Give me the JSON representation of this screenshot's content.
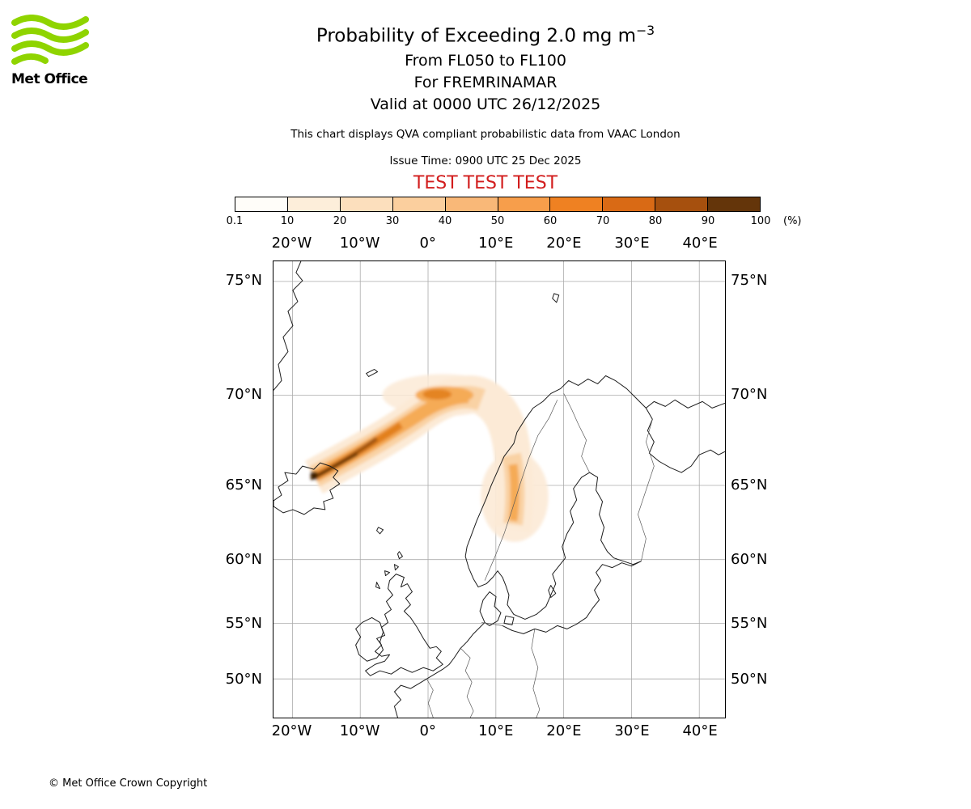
{
  "header": {
    "logo_text": "Met Office",
    "logo_green": "#8fd400",
    "title_main": "Probability of Exceeding 2.0 mg m",
    "title_sup": "−3",
    "line_fl": "From FL050 to FL100",
    "line_for": "For FREMRINAMAR",
    "line_valid": "Valid at 0000 UTC 26/12/2025",
    "qva_note": "This chart displays QVA compliant probabilistic data from VAAC London",
    "issue_time": "Issue Time: 0900 UTC 25 Dec 2025",
    "test_banner": "TEST TEST TEST",
    "test_color": "#d21d1d"
  },
  "colorbar": {
    "tick_labels": [
      "0.1",
      "10",
      "20",
      "30",
      "40",
      "50",
      "60",
      "70",
      "80",
      "90",
      "100"
    ],
    "unit": "(%)",
    "colors": [
      "#fffdf9",
      "#fdeeda",
      "#fcdfbd",
      "#fbcf9e",
      "#f9b878",
      "#f79e4b",
      "#ef8122",
      "#d96a15",
      "#a6500e",
      "#64350a"
    ]
  },
  "map": {
    "lon_labels": [
      "20°W",
      "10°W",
      "0°",
      "10°E",
      "20°E",
      "30°E",
      "40°E"
    ],
    "lat_labels": [
      "75°N",
      "70°N",
      "65°N",
      "60°N",
      "55°N",
      "50°N"
    ]
  },
  "footer": {
    "copyright": "© Met Office Crown Copyright"
  }
}
